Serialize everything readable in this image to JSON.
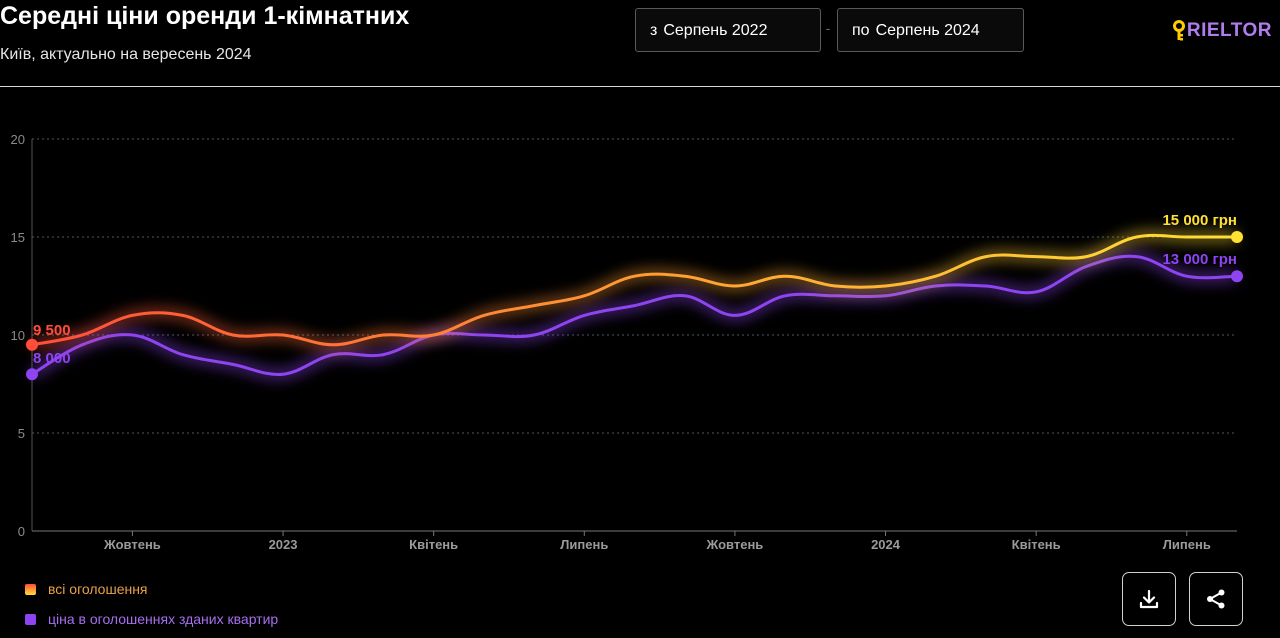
{
  "header": {
    "title": "Середні ціни оренди 1-кімнатних",
    "subtitle": "Київ, актуально на вересень 2024",
    "date_from": {
      "prefix": "з",
      "value": "Серпень 2022"
    },
    "date_separator": "-",
    "date_to": {
      "prefix": "по",
      "value": "Серпень 2024"
    },
    "logo_text": "RIELTOR"
  },
  "colors": {
    "background": "#000000",
    "all_listings_start": "#ff4d3a",
    "all_listings_mid": "#ff9a33",
    "all_listings_end": "#ffe033",
    "new_buildings": "#8e44f0",
    "logo_key": "#ffcc00",
    "logo_text": "#b07cf0"
  },
  "legend": [
    {
      "label": "всі оголошення",
      "color": "#ff9a33"
    },
    {
      "label": "ціна в оголошеннях зданих квартир",
      "color": "#8e44f0"
    }
  ],
  "actions": {
    "download_icon": "download-icon",
    "share_icon": "share-icon"
  },
  "chart_data": {
    "type": "line",
    "title": "Середні ціни оренди 1-кімнатних",
    "xlabel": "",
    "ylabel": "",
    "ylim": [
      0,
      20
    ],
    "yticks": [
      0,
      5,
      10,
      15,
      20
    ],
    "grid": true,
    "x_start_month": "2022-08",
    "x": [
      "2022-08",
      "2022-09",
      "2022-10",
      "2022-11",
      "2022-12",
      "2023-01",
      "2023-02",
      "2023-03",
      "2023-04",
      "2023-05",
      "2023-06",
      "2023-07",
      "2023-08",
      "2023-09",
      "2023-10",
      "2023-11",
      "2023-12",
      "2024-01",
      "2024-02",
      "2024-03",
      "2024-04",
      "2024-05",
      "2024-06",
      "2024-07",
      "2024-08"
    ],
    "xtick_labels": [
      {
        "x": "2022-10",
        "label": "Жовтень"
      },
      {
        "x": "2023-01",
        "label": "2023"
      },
      {
        "x": "2023-04",
        "label": "Квітень"
      },
      {
        "x": "2023-07",
        "label": "Липень"
      },
      {
        "x": "2023-10",
        "label": "Жовтень"
      },
      {
        "x": "2024-01",
        "label": "2024"
      },
      {
        "x": "2024-04",
        "label": "Квітень"
      },
      {
        "x": "2024-07",
        "label": "Липень"
      }
    ],
    "series": [
      {
        "name": "всі оголошення",
        "values": [
          9.5,
          10,
          11,
          11,
          10,
          10,
          9.5,
          10,
          10,
          11,
          11.5,
          12,
          13,
          13,
          12.5,
          13,
          12.5,
          12.5,
          13,
          14,
          14,
          14,
          15,
          15,
          15
        ],
        "start_label": "9 500",
        "end_label": "15 000 грн"
      },
      {
        "name": "ціна в оголошеннях зданих квартир",
        "values": [
          8,
          9.5,
          10,
          9,
          8.5,
          8,
          9,
          9,
          10,
          10,
          10,
          11,
          11.5,
          12,
          11,
          12,
          12,
          12,
          12.5,
          12.5,
          12.2,
          13.5,
          14,
          13,
          13
        ],
        "start_label": "8 000",
        "end_label": "13 000 грн"
      }
    ]
  }
}
